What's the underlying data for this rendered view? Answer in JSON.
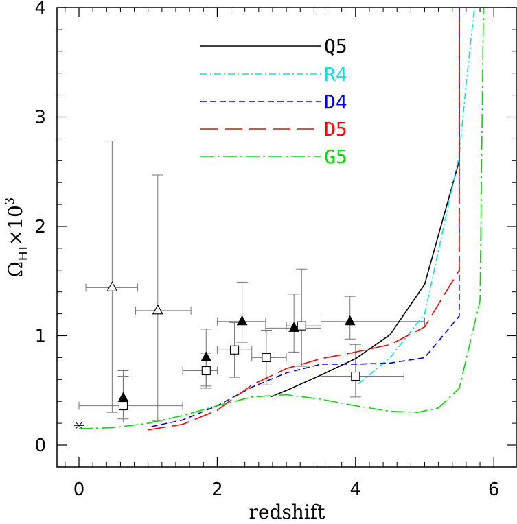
{
  "chart_data": {
    "type": "line",
    "title": "",
    "xlabel": "redshift",
    "ylabel": "Ω_HI×10³",
    "ylabel_parts": {
      "symbol": "Ω",
      "subscript": "HI",
      "times": "×10",
      "superscript": "3"
    },
    "xlim": [
      -0.3,
      6.3
    ],
    "ylim": [
      -0.2,
      4.0
    ],
    "xticks": [
      0,
      2,
      4,
      6
    ],
    "yticks": [
      0,
      1,
      2,
      3,
      4
    ],
    "grid": false,
    "legend_placement": "top-center",
    "series": [
      {
        "name": "Q5",
        "color": "#000000",
        "dash": "solid",
        "points": [
          [
            2.77,
            0.44
          ],
          [
            3.0,
            0.5
          ],
          [
            3.5,
            0.64
          ],
          [
            4.0,
            0.79
          ],
          [
            4.5,
            1.01
          ],
          [
            5.0,
            1.47
          ],
          [
            5.5,
            2.6
          ],
          [
            5.5,
            4.0
          ]
        ]
      },
      {
        "name": "R4",
        "color": "#00e5e5",
        "dash": "dashdot",
        "points": [
          [
            4.04,
            0.56
          ],
          [
            4.5,
            0.8
          ],
          [
            5.0,
            1.2
          ],
          [
            5.5,
            2.65
          ],
          [
            5.6,
            3.3
          ],
          [
            5.72,
            4.0
          ]
        ]
      },
      {
        "name": "D4",
        "color": "#0000ee",
        "dash": "dashed",
        "points": [
          [
            1.05,
            0.17
          ],
          [
            1.5,
            0.23
          ],
          [
            2.0,
            0.36
          ],
          [
            2.5,
            0.53
          ],
          [
            3.0,
            0.66
          ],
          [
            3.5,
            0.74
          ],
          [
            4.0,
            0.74
          ],
          [
            4.5,
            0.75
          ],
          [
            5.0,
            0.8
          ],
          [
            5.5,
            1.18
          ],
          [
            5.5,
            4.0
          ]
        ]
      },
      {
        "name": "D5",
        "color": "#ff0000",
        "dash": "longdash",
        "points": [
          [
            1.0,
            0.14
          ],
          [
            1.5,
            0.19
          ],
          [
            2.0,
            0.32
          ],
          [
            2.5,
            0.55
          ],
          [
            3.0,
            0.7
          ],
          [
            3.5,
            0.79
          ],
          [
            4.0,
            0.85
          ],
          [
            4.5,
            0.92
          ],
          [
            5.0,
            1.08
          ],
          [
            5.5,
            1.6
          ],
          [
            5.5,
            4.0
          ]
        ]
      },
      {
        "name": "G5",
        "color": "#00dd00",
        "dash": "dashdotlong",
        "points": [
          [
            0.0,
            0.15
          ],
          [
            0.5,
            0.16
          ],
          [
            1.0,
            0.2
          ],
          [
            1.5,
            0.27
          ],
          [
            2.0,
            0.36
          ],
          [
            2.5,
            0.44
          ],
          [
            3.0,
            0.46
          ],
          [
            3.5,
            0.42
          ],
          [
            4.0,
            0.36
          ],
          [
            4.5,
            0.31
          ],
          [
            4.9,
            0.3
          ],
          [
            5.2,
            0.34
          ],
          [
            5.5,
            0.52
          ],
          [
            5.8,
            1.32
          ],
          [
            5.85,
            4.0
          ]
        ]
      }
    ],
    "observations": [
      {
        "marker": "asterisk",
        "x": 0.0,
        "y": 0.18
      },
      {
        "marker": "open-triangle",
        "x": 0.48,
        "y": 1.44,
        "xerr": [
          0.1,
          0.85
        ],
        "yerr": [
          0.3,
          2.78
        ]
      },
      {
        "marker": "open-triangle",
        "x": 1.14,
        "y": 1.23,
        "xerr": [
          0.82,
          1.62
        ],
        "yerr": [
          0.22,
          2.47
        ]
      },
      {
        "marker": "open-square",
        "x": 0.64,
        "y": 0.36,
        "xerr": [
          0.0,
          1.5
        ],
        "yerr": [
          0.24,
          0.68
        ]
      },
      {
        "marker": "filled-triangle",
        "x": 0.64,
        "y": 0.43,
        "yerr": [
          0.21,
          0.63
        ]
      },
      {
        "marker": "open-square",
        "x": 1.84,
        "y": 0.68,
        "xerr": [
          1.5,
          2.0
        ],
        "yerr": [
          0.52,
          0.84
        ]
      },
      {
        "marker": "filled-triangle",
        "x": 1.84,
        "y": 0.8,
        "yerr": [
          0.54,
          1.06
        ]
      },
      {
        "marker": "open-square",
        "x": 2.25,
        "y": 0.87,
        "xerr": [
          2.0,
          2.5
        ],
        "yerr": [
          0.62,
          1.12
        ]
      },
      {
        "marker": "filled-triangle",
        "x": 2.36,
        "y": 1.13,
        "xerr": [
          2.0,
          2.7
        ],
        "yerr": [
          0.94,
          1.49
        ]
      },
      {
        "marker": "open-square",
        "x": 2.71,
        "y": 0.8,
        "xerr": [
          2.5,
          3.0
        ],
        "yerr": [
          0.55,
          1.05
        ]
      },
      {
        "marker": "filled-triangle",
        "x": 3.11,
        "y": 1.07,
        "xerr": [
          2.7,
          3.5
        ],
        "yerr": [
          0.85,
          1.38
        ]
      },
      {
        "marker": "open-square",
        "x": 3.22,
        "y": 1.09,
        "xerr": [
          3.0,
          3.5
        ],
        "yerr": [
          0.72,
          1.61
        ]
      },
      {
        "marker": "filled-triangle",
        "x": 3.92,
        "y": 1.13,
        "xerr": [
          3.5,
          5.0
        ],
        "yerr": [
          0.97,
          1.36
        ]
      },
      {
        "marker": "open-square",
        "x": 4.0,
        "y": 0.63,
        "xerr": [
          3.5,
          4.7
        ],
        "yerr": [
          0.44,
          0.92
        ]
      }
    ]
  }
}
